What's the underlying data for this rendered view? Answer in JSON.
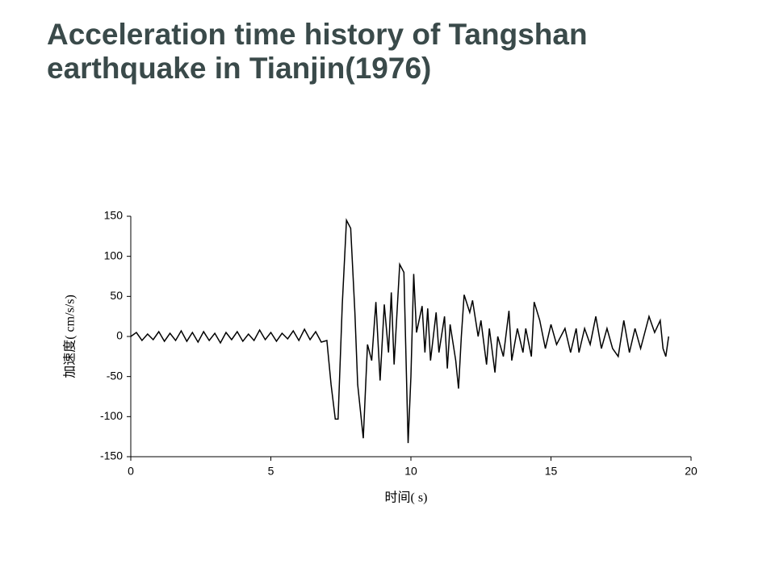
{
  "chart_data": {
    "type": "line",
    "title": "Acceleration time history of Tangshan earthquake in Tianjin(1976)",
    "x_label": "时间( s)",
    "y_label": "加速度( cm/s/s)",
    "xlim": [
      0,
      20
    ],
    "xticks": [
      0,
      5,
      10,
      15,
      20
    ],
    "ylim": [
      -150,
      150
    ],
    "yticks": [
      -150,
      -100,
      -50,
      0,
      50,
      100,
      150
    ],
    "series": [
      {
        "name": "acceleration",
        "color": "#000000",
        "x": [
          0,
          0.2,
          0.4,
          0.6,
          0.8,
          1.0,
          1.2,
          1.4,
          1.6,
          1.8,
          2.0,
          2.2,
          2.4,
          2.6,
          2.8,
          3.0,
          3.2,
          3.4,
          3.6,
          3.8,
          4.0,
          4.2,
          4.4,
          4.6,
          4.8,
          5.0,
          5.2,
          5.4,
          5.6,
          5.8,
          6.0,
          6.2,
          6.4,
          6.6,
          6.8,
          7.0,
          7.15,
          7.3,
          7.4,
          7.55,
          7.7,
          7.85,
          8.0,
          8.1,
          8.3,
          8.45,
          8.6,
          8.75,
          8.9,
          9.05,
          9.2,
          9.3,
          9.4,
          9.6,
          9.75,
          9.9,
          10.0,
          10.1,
          10.2,
          10.4,
          10.5,
          10.6,
          10.7,
          10.9,
          11.0,
          11.2,
          11.3,
          11.4,
          11.6,
          11.7,
          11.8,
          11.9,
          12.1,
          12.2,
          12.4,
          12.5,
          12.7,
          12.8,
          13.0,
          13.1,
          13.3,
          13.5,
          13.6,
          13.8,
          14.0,
          14.1,
          14.3,
          14.4,
          14.6,
          14.8,
          15.0,
          15.2,
          15.5,
          15.7,
          15.9,
          16.0,
          16.2,
          16.4,
          16.6,
          16.8,
          17.0,
          17.2,
          17.4,
          17.6,
          17.8,
          18.0,
          18.2,
          18.5,
          18.7,
          18.9,
          19.0,
          19.1,
          19.2
        ],
        "values": [
          0,
          5,
          -5,
          3,
          -4,
          6,
          -6,
          4,
          -5,
          7,
          -6,
          5,
          -7,
          6,
          -5,
          4,
          -8,
          5,
          -4,
          6,
          -6,
          3,
          -5,
          8,
          -4,
          5,
          -6,
          4,
          -3,
          7,
          -5,
          9,
          -4,
          6,
          -7,
          -5,
          -60,
          -103,
          -103,
          40,
          145,
          135,
          30,
          -60,
          -127,
          -10,
          -30,
          43,
          -55,
          40,
          -20,
          55,
          -35,
          90,
          80,
          -133,
          -50,
          78,
          5,
          38,
          -20,
          35,
          -30,
          30,
          -20,
          25,
          -40,
          15,
          -30,
          -65,
          0,
          52,
          30,
          45,
          0,
          20,
          -35,
          10,
          -45,
          0,
          -25,
          32,
          -30,
          10,
          -20,
          10,
          -25,
          43,
          20,
          -15,
          15,
          -10,
          10,
          -20,
          10,
          -20,
          10,
          -10,
          25,
          -15,
          10,
          -15,
          -25,
          20,
          -20,
          10,
          -15,
          25,
          5,
          20,
          -15,
          -25,
          0
        ]
      }
    ]
  }
}
